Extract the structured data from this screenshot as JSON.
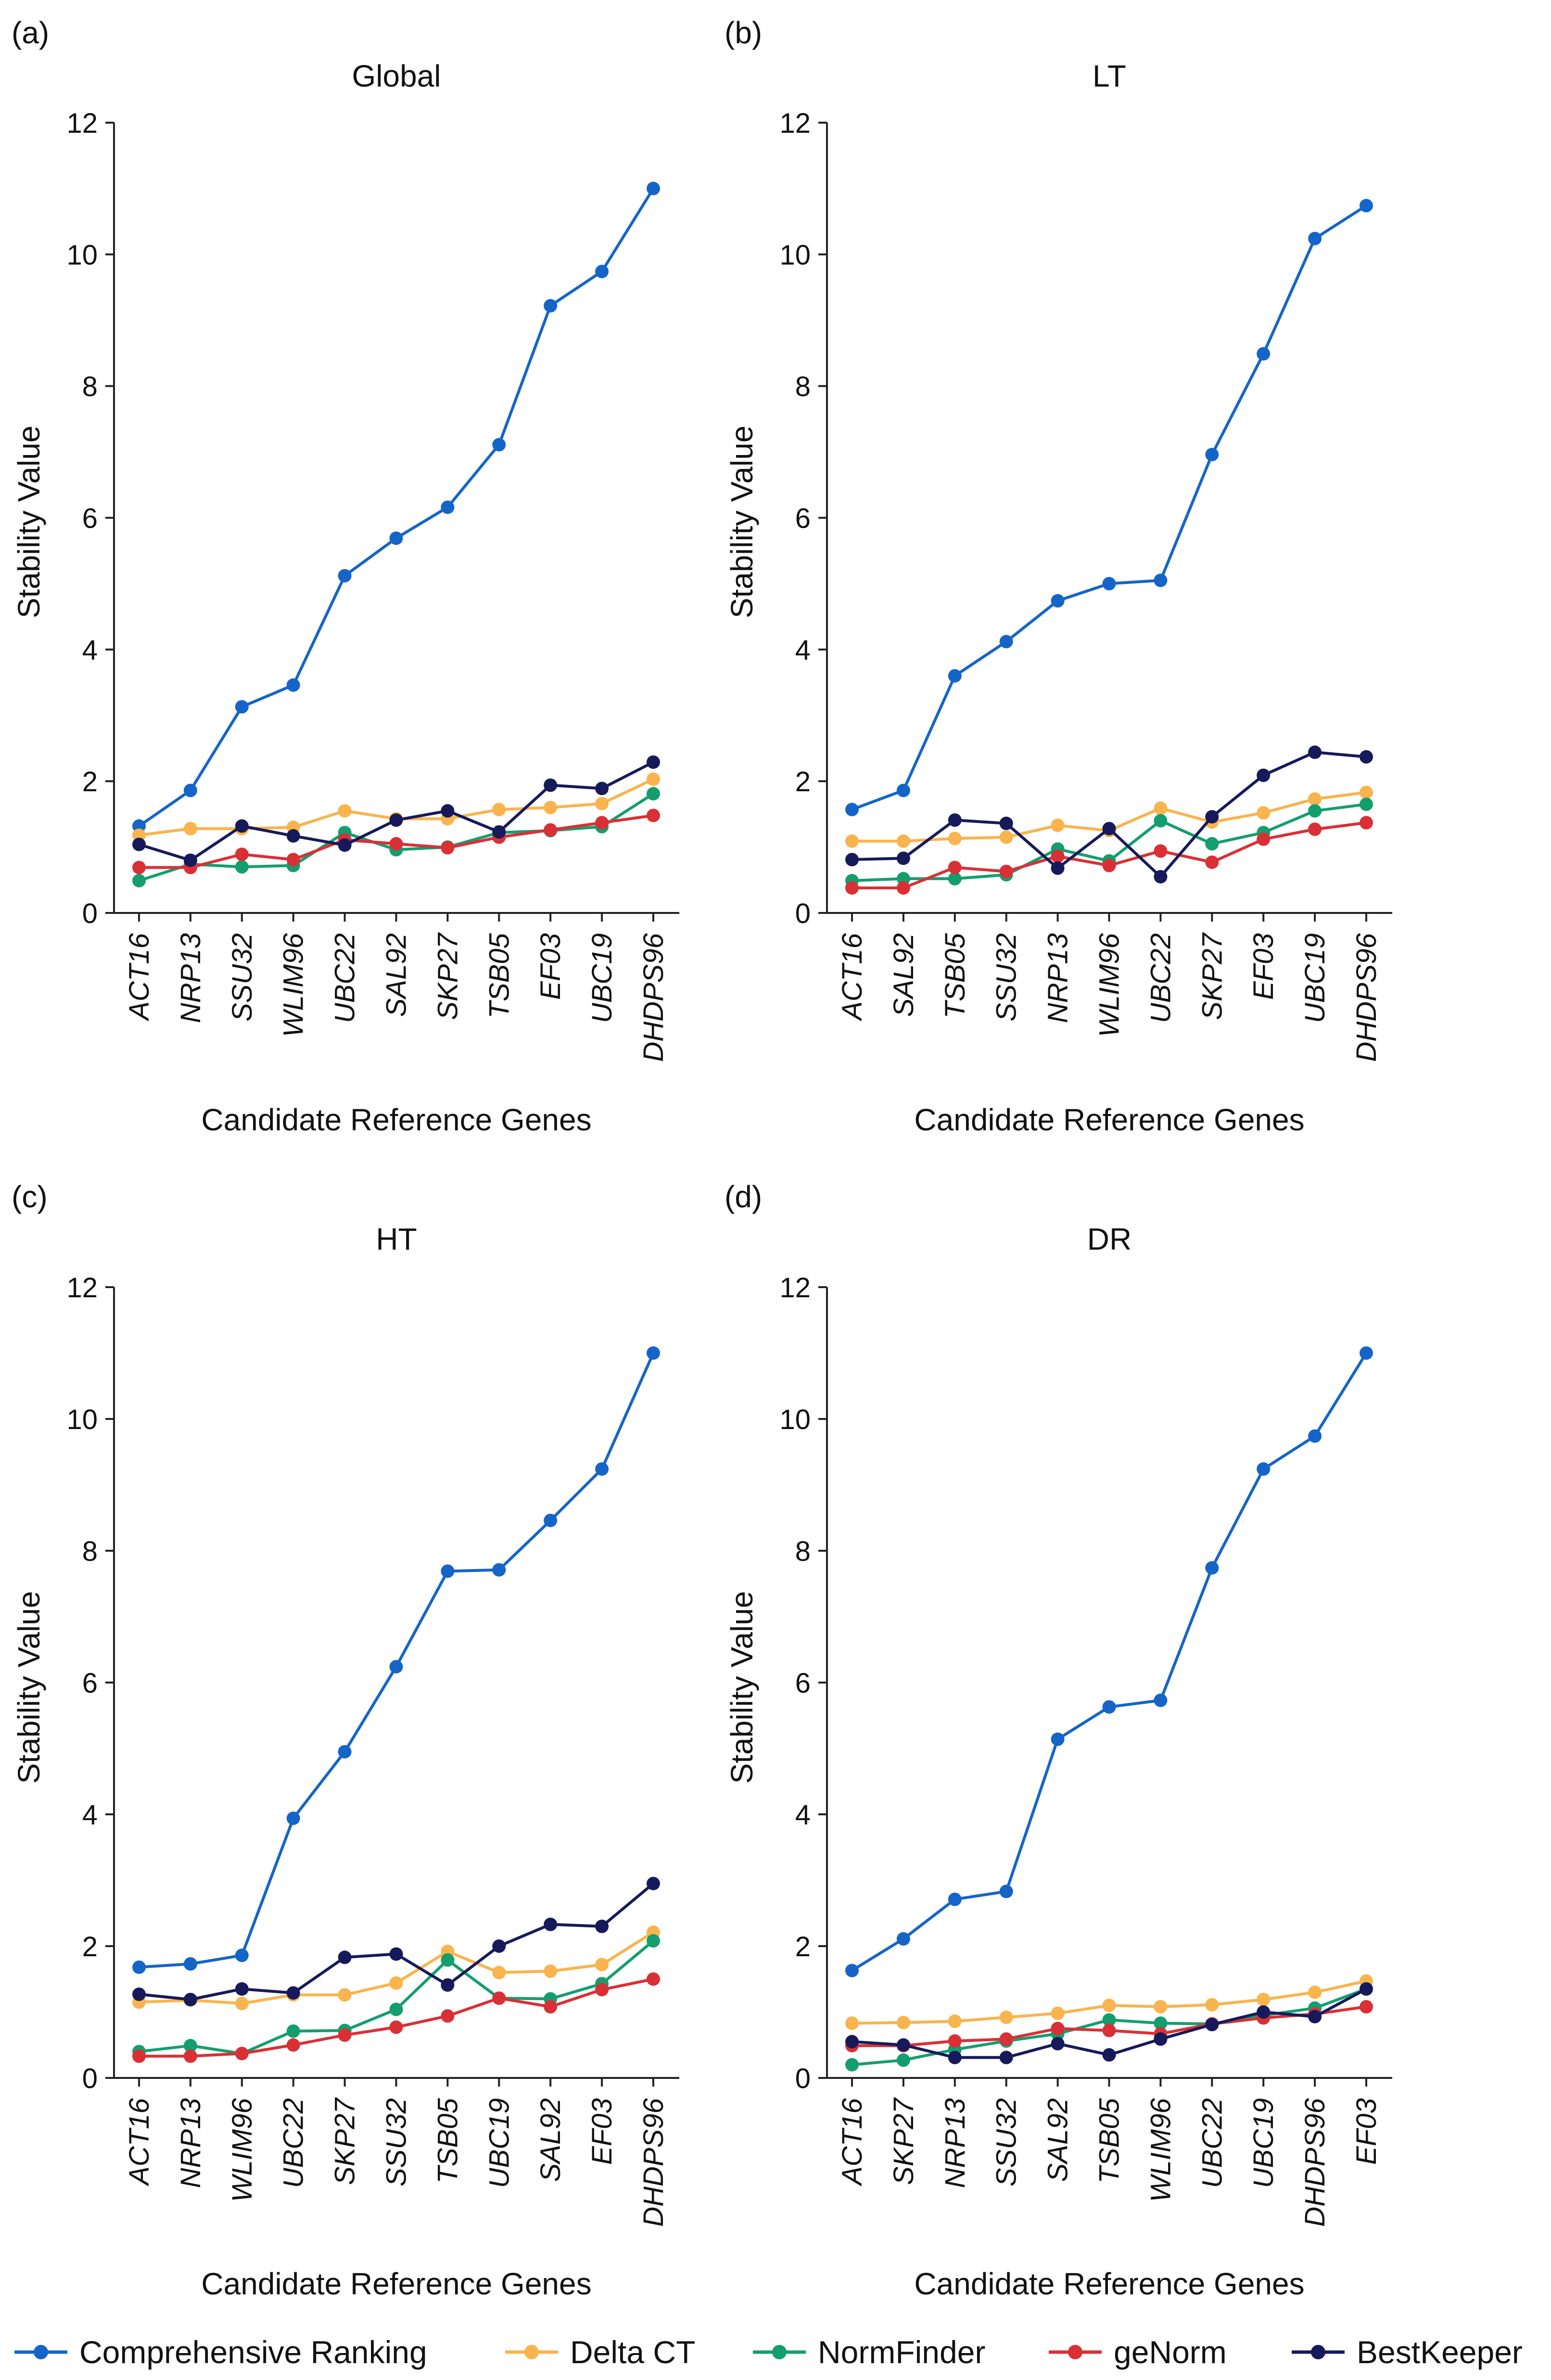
{
  "ylabel": "Stability Value",
  "xlabel": "Candidate Reference Genes",
  "colors": {
    "Comprehensive Ranking": "#1565c8",
    "Delta CT": "#f9b44d",
    "NormFinder": "#149e6e",
    "geNorm": "#d93036",
    "BestKeeper": "#161a5a"
  },
  "legend": [
    {
      "name": "Comprehensive Ranking"
    },
    {
      "name": "Delta CT"
    },
    {
      "name": "NormFinder"
    },
    {
      "name": "geNorm"
    },
    {
      "name": "BestKeeper"
    }
  ],
  "chart_data": [
    {
      "panel": "(a)",
      "title": "Global",
      "type": "line",
      "ylim": [
        0,
        12
      ],
      "yticks": [
        0,
        2,
        4,
        6,
        8,
        10,
        12
      ],
      "categories": [
        "ACT16",
        "NRP13",
        "SSU32",
        "WLIM96",
        "UBC22",
        "SAL92",
        "SKP27",
        "TSB05",
        "EF03",
        "UBC19",
        "DHDPS96"
      ],
      "series": [
        {
          "name": "Comprehensive Ranking",
          "values": [
            1.32,
            1.86,
            3.13,
            3.46,
            5.12,
            5.69,
            6.16,
            7.11,
            9.22,
            9.74,
            11.0
          ]
        },
        {
          "name": "Delta CT",
          "values": [
            1.18,
            1.28,
            1.28,
            1.3,
            1.55,
            1.43,
            1.43,
            1.57,
            1.6,
            1.66,
            2.03
          ]
        },
        {
          "name": "NormFinder",
          "values": [
            0.49,
            0.74,
            0.7,
            0.72,
            1.22,
            0.96,
            1.0,
            1.22,
            1.25,
            1.31,
            1.81
          ]
        },
        {
          "name": "geNorm",
          "values": [
            0.69,
            0.69,
            0.89,
            0.81,
            1.11,
            1.05,
            0.99,
            1.15,
            1.26,
            1.37,
            1.48
          ]
        },
        {
          "name": "BestKeeper",
          "values": [
            1.04,
            0.8,
            1.32,
            1.17,
            1.03,
            1.41,
            1.55,
            1.23,
            1.94,
            1.89,
            2.29
          ]
        }
      ]
    },
    {
      "panel": "(b)",
      "title": "LT",
      "type": "line",
      "ylim": [
        0,
        12
      ],
      "yticks": [
        0,
        2,
        4,
        6,
        8,
        10,
        12
      ],
      "categories": [
        "ACT16",
        "SAL92",
        "TSB05",
        "SSU32",
        "NRP13",
        "WLIM96",
        "UBC22",
        "SKP27",
        "EF03",
        "UBC19",
        "DHDPS96"
      ],
      "series": [
        {
          "name": "Comprehensive Ranking",
          "values": [
            1.57,
            1.86,
            3.6,
            4.12,
            4.74,
            5.0,
            5.05,
            6.96,
            8.49,
            10.24,
            10.74
          ]
        },
        {
          "name": "Delta CT",
          "values": [
            1.09,
            1.09,
            1.13,
            1.15,
            1.33,
            1.25,
            1.59,
            1.38,
            1.52,
            1.73,
            1.83
          ]
        },
        {
          "name": "NormFinder",
          "values": [
            0.49,
            0.52,
            0.52,
            0.58,
            0.97,
            0.79,
            1.4,
            1.05,
            1.22,
            1.55,
            1.65
          ]
        },
        {
          "name": "geNorm",
          "values": [
            0.38,
            0.38,
            0.69,
            0.63,
            0.86,
            0.72,
            0.94,
            0.77,
            1.12,
            1.27,
            1.37
          ]
        },
        {
          "name": "BestKeeper",
          "values": [
            0.81,
            0.83,
            1.41,
            1.36,
            0.68,
            1.28,
            0.55,
            1.46,
            2.09,
            2.44,
            2.37
          ]
        }
      ]
    },
    {
      "panel": "(c)",
      "title": "HT",
      "type": "line",
      "ylim": [
        0,
        12
      ],
      "yticks": [
        0,
        2,
        4,
        6,
        8,
        10,
        12
      ],
      "categories": [
        "ACT16",
        "NRP13",
        "WLIM96",
        "UBC22",
        "SKP27",
        "SSU32",
        "TSB05",
        "UBC19",
        "SAL92",
        "EF03",
        "DHDPS96"
      ],
      "series": [
        {
          "name": "Comprehensive Ranking",
          "values": [
            1.68,
            1.73,
            1.86,
            3.94,
            4.95,
            6.24,
            7.69,
            7.71,
            8.46,
            9.24,
            11.0
          ]
        },
        {
          "name": "Delta CT",
          "values": [
            1.15,
            1.18,
            1.13,
            1.26,
            1.26,
            1.44,
            1.92,
            1.6,
            1.62,
            1.72,
            2.21
          ]
        },
        {
          "name": "NormFinder",
          "values": [
            0.4,
            0.49,
            0.37,
            0.71,
            0.72,
            1.04,
            1.79,
            1.21,
            1.2,
            1.43,
            2.08
          ]
        },
        {
          "name": "geNorm",
          "values": [
            0.33,
            0.33,
            0.37,
            0.5,
            0.65,
            0.77,
            0.94,
            1.21,
            1.08,
            1.34,
            1.5
          ]
        },
        {
          "name": "BestKeeper",
          "values": [
            1.27,
            1.19,
            1.35,
            1.29,
            1.83,
            1.88,
            1.41,
            2.0,
            2.33,
            2.3,
            2.95
          ]
        }
      ]
    },
    {
      "panel": "(d)",
      "title": "DR",
      "type": "line",
      "ylim": [
        0,
        12
      ],
      "yticks": [
        0,
        2,
        4,
        6,
        8,
        10,
        12
      ],
      "categories": [
        "ACT16",
        "SKP27",
        "NRP13",
        "SSU32",
        "SAL92",
        "TSB05",
        "WLIM96",
        "UBC22",
        "UBC19",
        "DHDPS96",
        "EF03"
      ],
      "series": [
        {
          "name": "Comprehensive Ranking",
          "values": [
            1.63,
            2.11,
            2.71,
            2.83,
            5.14,
            5.63,
            5.73,
            7.74,
            9.24,
            9.74,
            11.0
          ]
        },
        {
          "name": "Delta CT",
          "values": [
            0.83,
            0.84,
            0.86,
            0.92,
            0.98,
            1.1,
            1.08,
            1.11,
            1.19,
            1.3,
            1.47
          ]
        },
        {
          "name": "NormFinder",
          "values": [
            0.2,
            0.27,
            0.43,
            0.56,
            0.67,
            0.88,
            0.83,
            0.82,
            0.95,
            1.06,
            1.35
          ]
        },
        {
          "name": "geNorm",
          "values": [
            0.49,
            0.49,
            0.56,
            0.59,
            0.75,
            0.72,
            0.67,
            0.82,
            0.91,
            0.97,
            1.08
          ]
        },
        {
          "name": "BestKeeper",
          "values": [
            0.55,
            0.5,
            0.31,
            0.31,
            0.52,
            0.35,
            0.59,
            0.81,
            1.0,
            0.93,
            1.35
          ]
        }
      ]
    }
  ]
}
